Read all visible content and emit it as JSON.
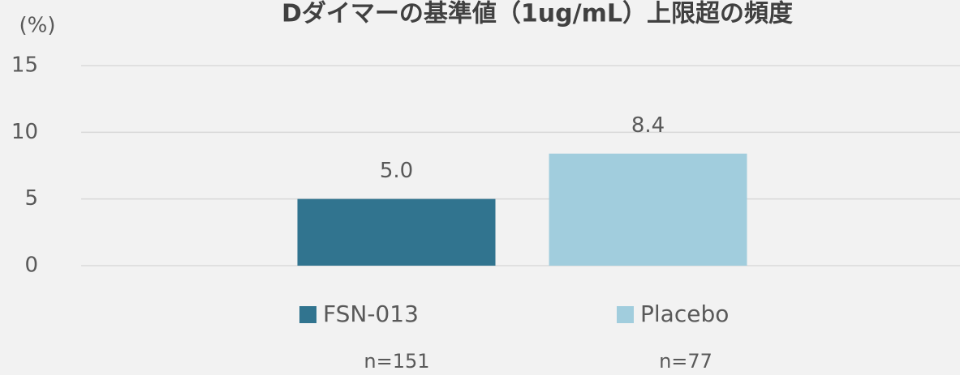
{
  "chart_data": {
    "type": "bar",
    "title": "Dダイマーの基準値（1ug/mL）上限超の頻度",
    "y_label": "(%)",
    "categories": [
      null
    ],
    "series": [
      {
        "name": "FSN-013",
        "color": "#31748f",
        "values": [
          5
        ],
        "value_labels": [
          "5.0"
        ]
      },
      {
        "name": "Placebo",
        "color": "#a1cddd",
        "values": [
          8.4
        ]
      }
    ],
    "annotations": [
      "n=151",
      "n=77"
    ],
    "ylim": [
      0,
      15
    ],
    "yticks": [
      0,
      5,
      10,
      15
    ],
    "grid": true
  }
}
